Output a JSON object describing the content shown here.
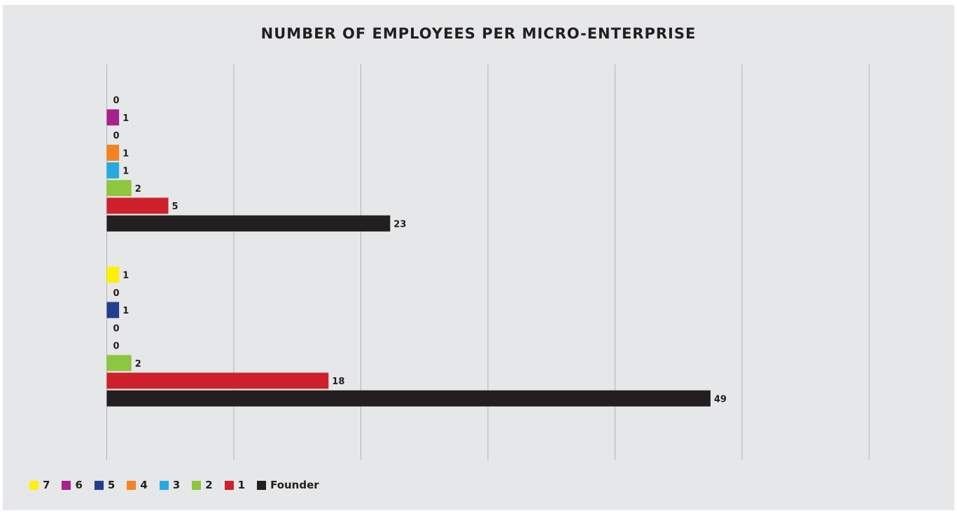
{
  "chart_data": {
    "type": "bar",
    "orientation": "horizontal",
    "title": "NUMBER OF EMPLOYEES PER MICRO-ENTERPRISE",
    "xlabel": "",
    "ylabel": "",
    "xlim": [
      0,
      62
    ],
    "grid": true,
    "legend_position": "bottom-left",
    "categories": [
      "",
      ""
    ],
    "series": [
      {
        "name": "7",
        "color": "#fff200",
        "values": [
          0,
          1
        ]
      },
      {
        "name": "6",
        "color": "#a8218e",
        "values": [
          1,
          0
        ]
      },
      {
        "name": "5",
        "color": "#233d8f",
        "values": [
          0,
          1
        ]
      },
      {
        "name": "4",
        "color": "#f58220",
        "values": [
          1,
          0
        ]
      },
      {
        "name": "3",
        "color": "#26a9e0",
        "values": [
          1,
          0
        ]
      },
      {
        "name": "2",
        "color": "#8dc63f",
        "values": [
          2,
          2
        ]
      },
      {
        "name": "1",
        "color": "#cf202e",
        "values": [
          5,
          18
        ]
      },
      {
        "name": "Founder",
        "color": "#231f20",
        "values": [
          23,
          49
        ]
      }
    ]
  }
}
